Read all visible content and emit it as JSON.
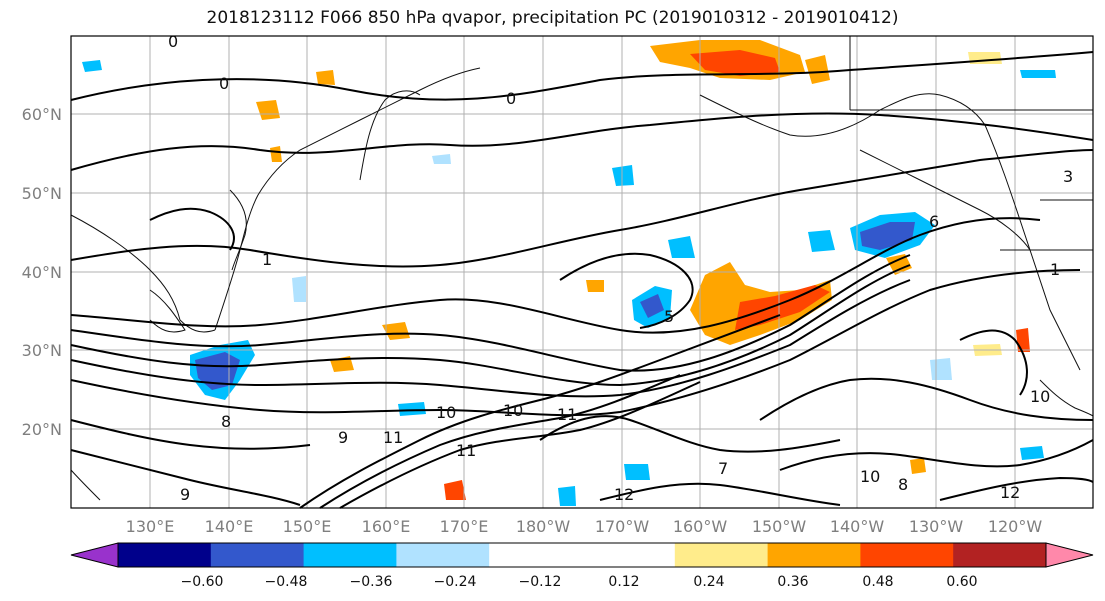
{
  "title": "2018123112 F066 850 hPa qvapor, precipitation PC (2019010312 - 2019010412)",
  "lon_labels": [
    "130°E",
    "140°E",
    "150°E",
    "160°E",
    "170°E",
    "180°W",
    "170°W",
    "160°W",
    "150°W",
    "140°W",
    "130°W",
    "120°W"
  ],
  "lat_labels": [
    "60°N",
    "50°N",
    "40°N",
    "30°N",
    "20°N"
  ],
  "contour_labels": [
    "0",
    "0",
    "0",
    "1",
    "1",
    "3",
    "5",
    "6",
    "7",
    "8",
    "8",
    "9",
    "9",
    "10",
    "10",
    "10",
    "10",
    "11",
    "11",
    "11",
    "12",
    "12"
  ],
  "colorbar": {
    "colors": [
      "#9932cc",
      "#00008b",
      "#3358cc",
      "#00bfff",
      "#b0e2ff",
      "#ffffff",
      "#ffffff",
      "#ffec8b",
      "#ffa500",
      "#ff4500",
      "#b22222",
      "#ff88aa"
    ],
    "labels": [
      "−0.60",
      "−0.48",
      "−0.36",
      "−0.24",
      "−0.12",
      "0.12",
      "0.24",
      "0.36",
      "0.48",
      "0.60"
    ]
  },
  "colors": {
    "land_outline": "#111111",
    "grid": "#b0b0b0",
    "contour": "#000000"
  }
}
